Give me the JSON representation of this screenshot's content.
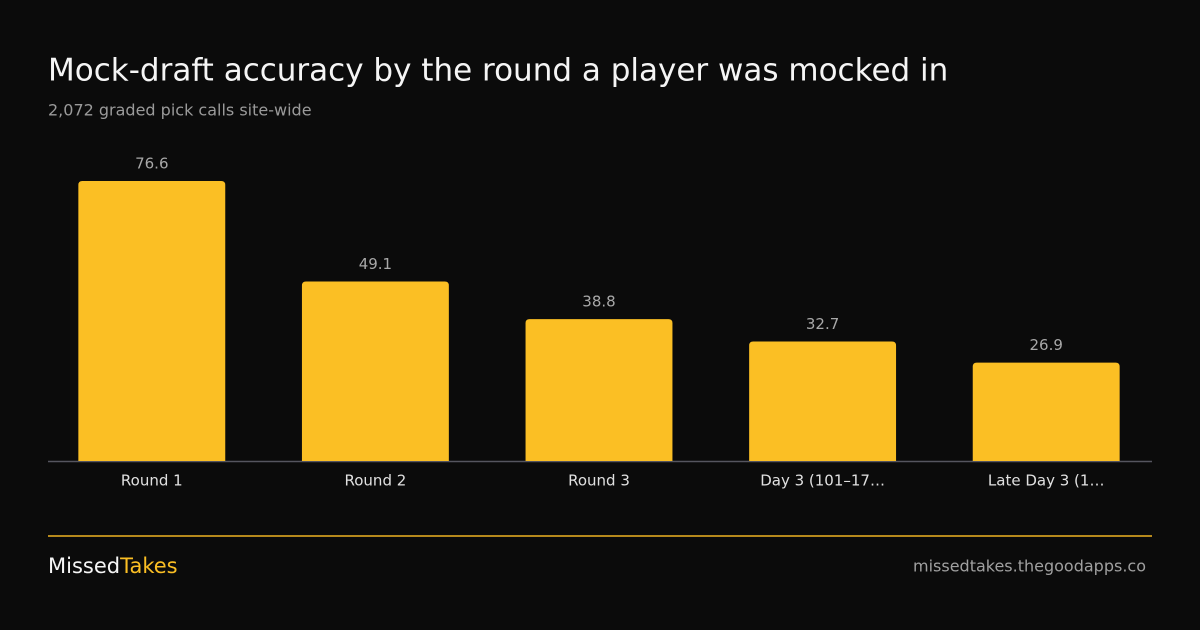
{
  "chart_data": {
    "type": "bar",
    "title": "Mock-draft accuracy by the round a player was mocked in",
    "subtitle": "2,072 graded pick calls site-wide",
    "categories": [
      "Round 1",
      "Round 2",
      "Round 3",
      "Day 3 (101–17…",
      "Late Day 3 (1…"
    ],
    "values": [
      76.6,
      49.1,
      38.8,
      32.7,
      26.9
    ],
    "color": "#fbbf24",
    "ylim": [
      0,
      80
    ]
  },
  "footer": {
    "brand_first": "Missed",
    "brand_second": "Takes",
    "url": "missedtakes.thegoodapps.co"
  }
}
